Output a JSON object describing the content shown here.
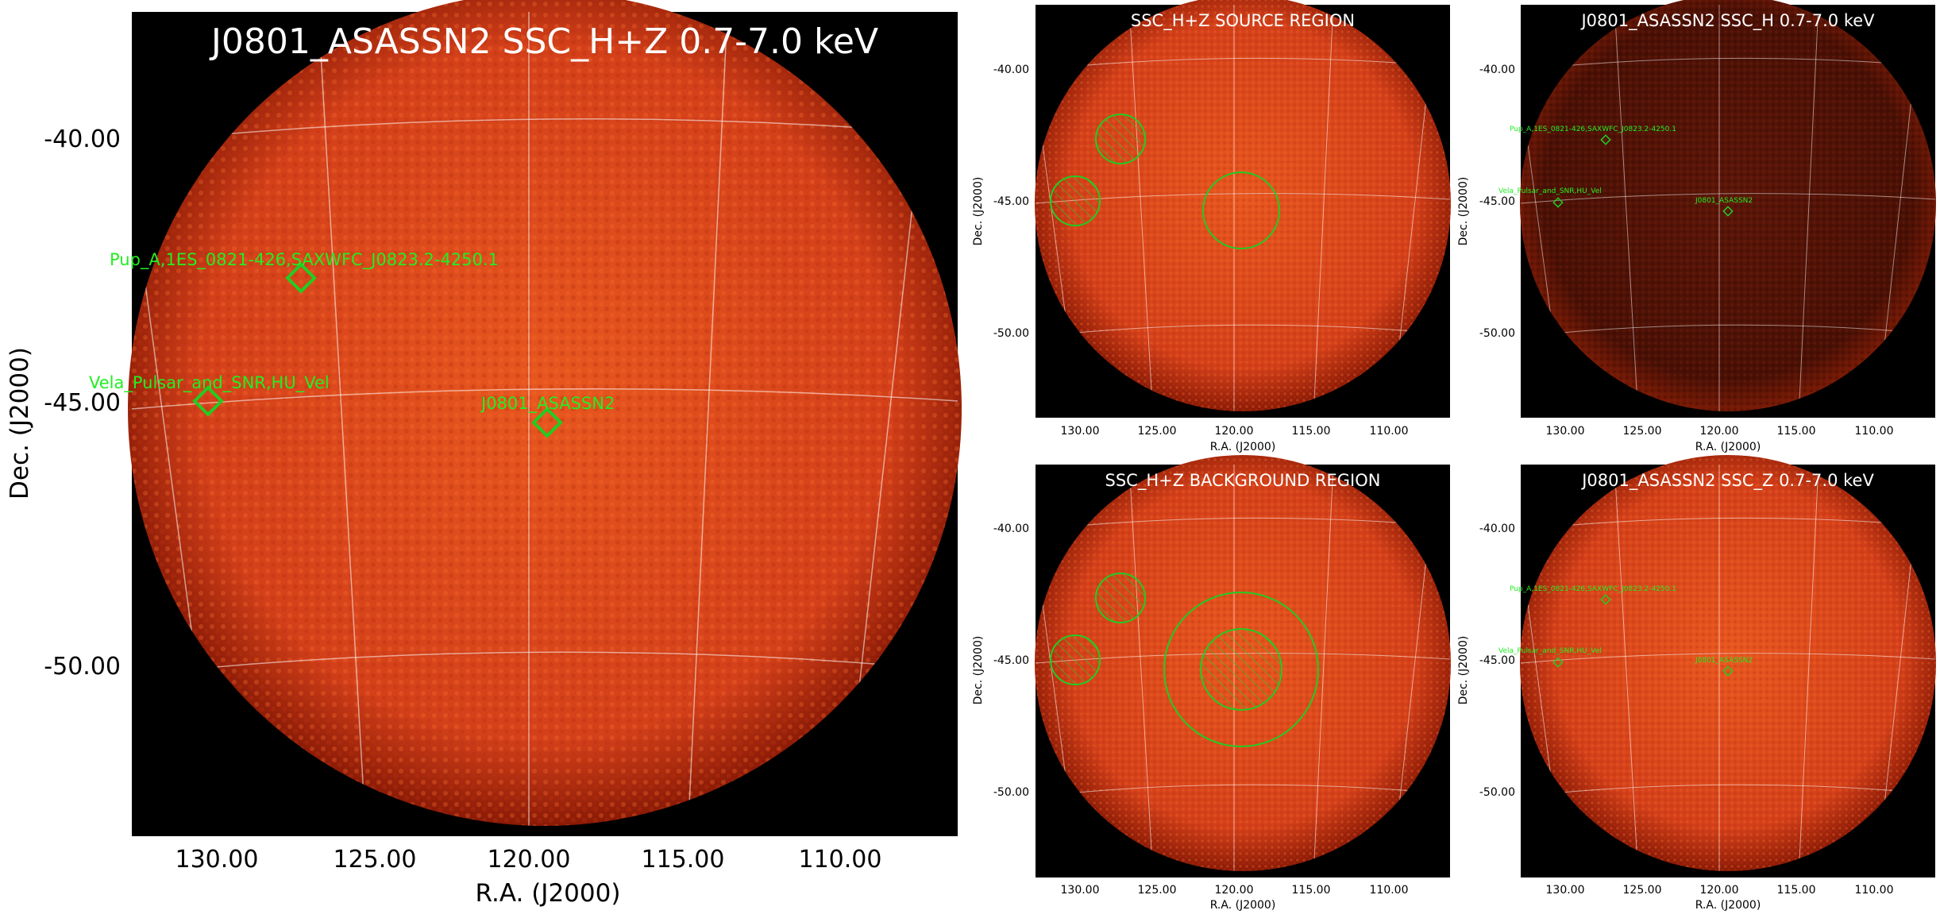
{
  "colors": {
    "disk_center": "#e8571f",
    "disk_mid": "#d4401a",
    "disk_edge": "#8a1a06",
    "dark_disk_center": "#5c1608",
    "dark_disk_edge": "#3a0c03",
    "grid": "#ffffff",
    "region": "#22cc22",
    "label": "#22ee22",
    "background": "#000000"
  },
  "main": {
    "title": "J0801_ASASSN2 SSC_H+Z 0.7-7.0 keV",
    "xlabel": "R.A. (J2000)",
    "ylabel": "Dec. (J2000)",
    "xticks": [
      "130.00",
      "125.00",
      "120.00",
      "115.00",
      "110.00"
    ],
    "yticks": [
      "-40.00",
      "-45.00",
      "-50.00"
    ],
    "sources": [
      {
        "name": "Pup_A,1ES_0821-426,SAXWFC_J0823.2-4250.1",
        "ra": 127.3,
        "dec": -42.7
      },
      {
        "name": "Vela_Pulsar_and_SNR,HU_Vel",
        "ra": 130.3,
        "dec": -45.0
      },
      {
        "name": "J0801_ASASSN2",
        "ra": 119.6,
        "dec": -45.4
      }
    ]
  },
  "source_region": {
    "title": "SSC_H+Z SOURCE REGION",
    "xlabel": "R.A. (J2000)",
    "ylabel": "Dec. (J2000)",
    "xticks": [
      "130.00",
      "125.00",
      "120.00",
      "115.00",
      "110.00"
    ],
    "yticks": [
      "-40.00",
      "-45.00",
      "-50.00"
    ]
  },
  "h_band": {
    "title": "J0801_ASASSN2 SSC_H 0.7-7.0 keV",
    "xlabel": "R.A. (J2000)",
    "ylabel": "Dec. (J2000)",
    "xticks": [
      "130.00",
      "125.00",
      "120.00",
      "115.00",
      "110.00"
    ],
    "yticks": [
      "-40.00",
      "-45.00",
      "-50.00"
    ],
    "sources": [
      {
        "name": "Pup_A,1ES_0821-426,SAXWFC_J0823.2-4250.1"
      },
      {
        "name": "Vela_Pulsar_and_SNR,HU_Vel"
      },
      {
        "name": "J0801_ASASSN2"
      }
    ]
  },
  "background_region": {
    "title": "SSC_H+Z BACKGROUND REGION",
    "xlabel": "R.A. (J2000)",
    "ylabel": "Dec. (J2000)",
    "xticks": [
      "130.00",
      "125.00",
      "120.00",
      "115.00",
      "110.00"
    ],
    "yticks": [
      "-40.00",
      "-45.00",
      "-50.00"
    ]
  },
  "z_band": {
    "title": "J0801_ASASSN2 SSC_Z 0.7-7.0 keV",
    "xlabel": "R.A. (J2000)",
    "ylabel": "Dec. (J2000)",
    "xticks": [
      "130.00",
      "125.00",
      "120.00",
      "115.00",
      "110.00"
    ],
    "yticks": [
      "-40.00",
      "-45.00",
      "-50.00"
    ],
    "sources": [
      {
        "name": "Pup_A,1ES_0821-426,SAXWFC_J0823.2-4250.1"
      },
      {
        "name": "Vela_Pulsar_and_SNR,HU_Vel"
      },
      {
        "name": "J0801_ASASSN2"
      }
    ]
  }
}
